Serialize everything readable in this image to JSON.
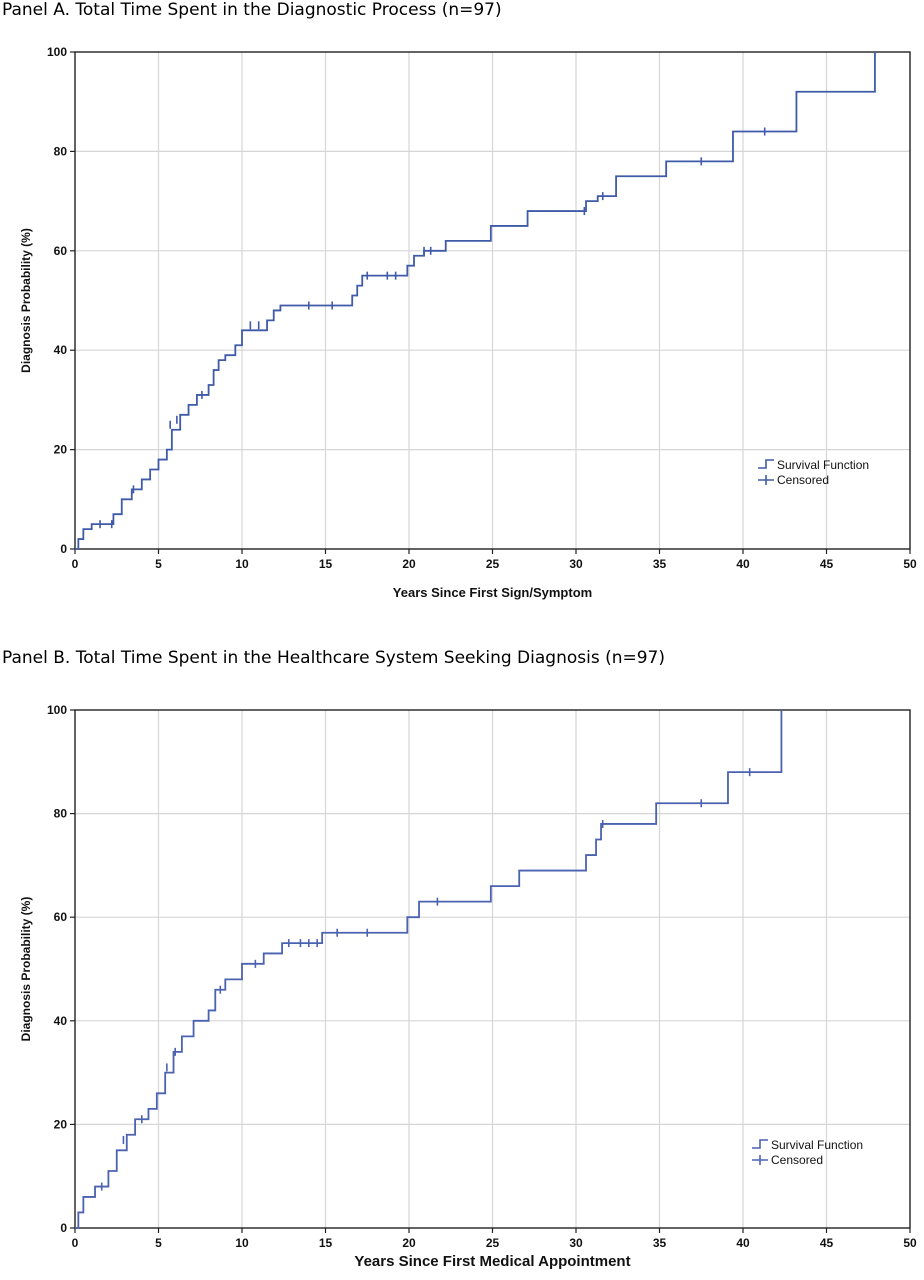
{
  "chart_data": [
    {
      "type": "line",
      "title": "Panel A.  Total Time Spent in the Diagnostic Process (n=97)",
      "xlabel": "Years Since First Sign/Symptom",
      "ylabel": "Diagnosis Probability (%)",
      "xlim": [
        0,
        50
      ],
      "ylim": [
        0,
        100
      ],
      "xticks": [
        "0",
        "5",
        "10",
        "15",
        "20",
        "25",
        "30",
        "35",
        "40",
        "45",
        "50"
      ],
      "yticks": [
        "0",
        "20",
        "40",
        "60",
        "80",
        "100"
      ],
      "grid": true,
      "legend_position": "right-middle",
      "line_color": "#3f5aa8",
      "series": [
        {
          "name": "Survival Function",
          "x": [
            0,
            0.2,
            0.5,
            1.0,
            2.3,
            2.8,
            3.4,
            4.0,
            4.5,
            5.0,
            5.5,
            5.8,
            6.3,
            6.8,
            7.3,
            8.0,
            8.3,
            8.6,
            9.0,
            9.6,
            10.0,
            11.5,
            11.9,
            12.3,
            16.6,
            16.9,
            17.2,
            19.9,
            20.3,
            20.9,
            22.2,
            24.9,
            27.1,
            30.6,
            31.3,
            32.4,
            35.4,
            39.4,
            43.2,
            47.9
          ],
          "y": [
            0,
            2,
            4,
            5,
            7,
            10,
            12,
            14,
            16,
            18,
            20,
            24,
            27,
            29,
            31,
            33,
            36,
            38,
            39,
            41,
            44,
            46,
            48,
            49,
            51,
            53,
            55,
            57,
            59,
            60,
            62,
            65,
            68,
            70,
            71,
            75,
            78,
            84,
            92,
            100
          ]
        },
        {
          "name": "Censored",
          "x": [
            1.5,
            2.2,
            3.5,
            5.7,
            6.1,
            7.6,
            10.5,
            11.0,
            14.0,
            15.4,
            17.5,
            18.7,
            19.2,
            20.9,
            21.3,
            30.5,
            31.6,
            37.5,
            41.3
          ],
          "y": [
            5,
            5,
            12,
            25,
            26,
            31,
            45,
            45,
            49,
            49,
            55,
            55,
            55,
            60,
            60,
            68,
            71,
            78,
            84
          ]
        }
      ]
    },
    {
      "type": "line",
      "title": "Panel B. Total Time Spent in the Healthcare System Seeking Diagnosis (n=97)",
      "xlabel": "Years Since First Medical Appointment",
      "ylabel": "Diagnosis Probability (%)",
      "xlim": [
        0,
        50
      ],
      "ylim": [
        0,
        100
      ],
      "xticks": [
        "0",
        "5",
        "10",
        "15",
        "20",
        "25",
        "30",
        "35",
        "40",
        "45",
        "50"
      ],
      "yticks": [
        "0",
        "20",
        "40",
        "60",
        "80",
        "100"
      ],
      "grid": true,
      "legend_position": "right-lower",
      "line_color": "#4a62b0",
      "series": [
        {
          "name": "Survival Function",
          "x": [
            0,
            0.2,
            0.5,
            1.2,
            2.0,
            2.5,
            3.1,
            3.6,
            4.4,
            4.9,
            5.4,
            5.9,
            6.4,
            7.1,
            8.0,
            8.4,
            9.0,
            10.0,
            11.3,
            12.4,
            14.8,
            19.9,
            20.6,
            24.9,
            26.6,
            30.6,
            31.2,
            31.5,
            34.8,
            39.1,
            42.3
          ],
          "y": [
            0,
            3,
            6,
            8,
            11,
            15,
            18,
            21,
            23,
            26,
            30,
            34,
            37,
            40,
            42,
            46,
            48,
            51,
            53,
            55,
            57,
            60,
            63,
            66,
            69,
            72,
            75,
            78,
            82,
            88,
            100
          ]
        },
        {
          "name": "Censored",
          "x": [
            1.6,
            2.9,
            4.0,
            5.5,
            6.0,
            8.7,
            10.8,
            12.8,
            13.5,
            14.0,
            14.5,
            15.7,
            17.5,
            21.7,
            31.6,
            37.5,
            40.4
          ],
          "y": [
            8,
            17,
            21,
            31,
            34,
            46,
            51,
            55,
            55,
            55,
            55,
            57,
            57,
            63,
            78,
            82,
            88
          ]
        }
      ]
    }
  ]
}
